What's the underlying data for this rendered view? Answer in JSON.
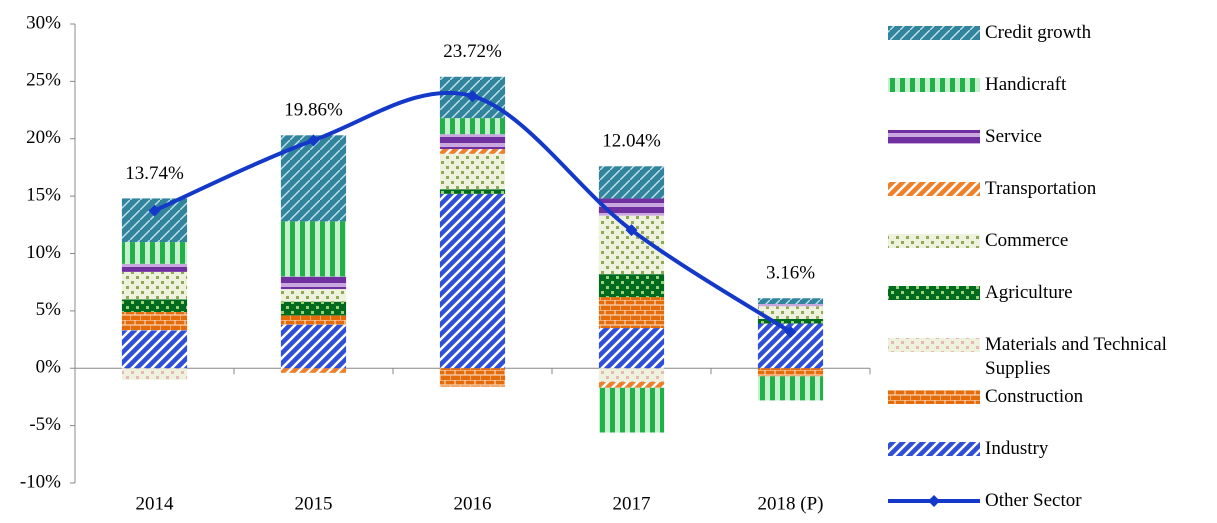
{
  "chart_data": {
    "type": "bar",
    "categories": [
      "2014",
      "2015",
      "2016",
      "2017",
      "2018 (P)"
    ],
    "series": [
      {
        "name": "Industry",
        "color": "#2f4fd8",
        "values": [
          3.3,
          3.8,
          15.2,
          3.5,
          3.9
        ]
      },
      {
        "name": "Construction",
        "color": "#e46c0a",
        "values": [
          1.6,
          0.8,
          -1.6,
          2.7,
          -0.7
        ]
      },
      {
        "name": "Materials and Technical Supplies",
        "color": "#e6b8b7",
        "values": [
          -1.0,
          0,
          0,
          -1.2,
          0
        ]
      },
      {
        "name": "Agriculture",
        "color": "#006b1e",
        "values": [
          1.1,
          1.2,
          0.4,
          2.0,
          0.4
        ]
      },
      {
        "name": "Commerce",
        "color": "#8fa85a",
        "values": [
          2.4,
          1.1,
          3.1,
          5.1,
          1.1
        ]
      },
      {
        "name": "Transportation",
        "color": "#f07f2a",
        "values": [
          0,
          -0.4,
          0.4,
          -0.5,
          0
        ]
      },
      {
        "name": "Service",
        "color": "#7030a0",
        "values": [
          0.7,
          1.1,
          1.3,
          1.5,
          0.2
        ]
      },
      {
        "name": "Handicraft",
        "color": "#22b04a",
        "values": [
          1.9,
          4.8,
          1.4,
          -3.9,
          -2.1
        ]
      },
      {
        "name": "Credit growth",
        "color": "#31849b",
        "values": [
          3.8,
          7.5,
          3.6,
          2.8,
          0.5
        ]
      },
      {
        "name": "Other Sector",
        "color": "#1438c8",
        "type": "line",
        "values": [
          13.74,
          19.86,
          23.72,
          12.04,
          3.16
        ],
        "value_labels": [
          "13.74%",
          "19.86%",
          "23.72%",
          "12.04%",
          "3.16%"
        ]
      }
    ],
    "ylim": [
      -10,
      30
    ],
    "yticks": [
      {
        "value": -10,
        "label": "-10%"
      },
      {
        "value": -5,
        "label": "-5%"
      },
      {
        "value": 0,
        "label": "0%"
      },
      {
        "value": 5,
        "label": "5%"
      },
      {
        "value": 10,
        "label": "10%"
      },
      {
        "value": 15,
        "label": "15%"
      },
      {
        "value": 20,
        "label": "20%"
      },
      {
        "value": 25,
        "label": "25%"
      },
      {
        "value": 30,
        "label": "30%"
      }
    ],
    "grid": false,
    "legend": "right"
  }
}
